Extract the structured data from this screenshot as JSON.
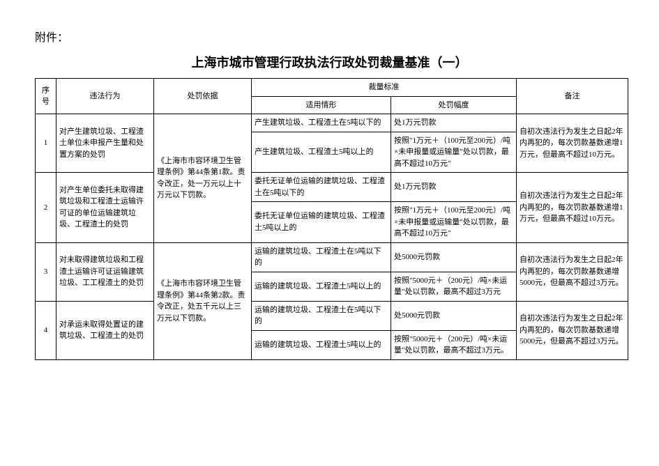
{
  "attachment_label": "附件：",
  "title": "上海市城市管理行政执法行政处罚裁量基准（一）",
  "headers": {
    "index": "序号",
    "violation": "违法行为",
    "basis": "处罚依据",
    "standard": "裁量标准",
    "situation": "适用情形",
    "degree": "处罚幅度",
    "remark": "备注"
  },
  "groups": [
    {
      "basis_text": "《上海市市容环境卫生管理条例》第44条第1款。责令改正，处一万元以上十万元以下罚款。",
      "rows": [
        {
          "index": "1",
          "violation": "对产生建筑垃圾、工程渣土单位未申报产生量和处置方案的处罚",
          "subrows": [
            {
              "situation": "产生建筑垃圾、工程渣土在5吨以下的",
              "degree": "处1万元罚款"
            },
            {
              "situation": "产生建筑垃圾、工程渣土5吨以上的",
              "degree": "按照\"1万元＋（100元至200元）/吨×未申报量或运输量\"处以罚款，最高不超过10万元\""
            }
          ],
          "remark": "自初次违法行为发生之日起2年内再犯的，每次罚款基数递增1万元，但最高不超过10万元。"
        },
        {
          "index": "2",
          "violation": "对产生单位委托未取得建筑垃圾和工程渣土运输许可证的单位运输建筑垃圾、工程渣土的处罚",
          "subrows": [
            {
              "situation": "委托无证单位运输的建筑垃圾、工程渣土在5吨以下的",
              "degree": "处1万元罚款"
            },
            {
              "situation": "委托无证单位运输的建筑垃圾、工程渣土5吨以上的",
              "degree": "按照\"1万元＋（100元至200元）/吨×未申报量或运输量\"处以罚款，最高不超过10万元\""
            }
          ],
          "remark": "自初次违法行为发生之日起2年内再犯的，每次罚款基数递增1万元，但最高不超过10万元。"
        }
      ]
    },
    {
      "basis_text": "《上海市市容环境卫生管理条例》第44条第2款。责令改正，处五千元以上三万元以下罚款。",
      "rows": [
        {
          "index": "3",
          "violation": "对未取得建筑垃圾和工程渣土运输许可证运输建筑垃圾、工工程渣土的处罚",
          "subrows": [
            {
              "situation": "运输的建筑垃圾、工程渣土在5吨以下的",
              "degree": "处5000元罚款"
            },
            {
              "situation": "运输的建筑垃圾、工程渣土5吨以上的",
              "degree": "按照\"5000元＋（200元）/吨×未运量\"处以罚款，最高不超过3万元"
            }
          ],
          "remark": "自初次违法行为发生之日起2年内再犯的，每次罚款基数递增5000元，但最高不超过3万元。"
        },
        {
          "index": "4",
          "violation": "对承运未取得处置证的建筑垃圾、工程渣土的处罚",
          "subrows": [
            {
              "situation": "运输的建筑垃圾、工程渣土在5吨以下的",
              "degree": "处5000元罚款"
            },
            {
              "situation": "运输的建筑垃圾、工程渣土5吨以上的",
              "degree": "按照\"5000元＋（200元）/吨×未运量\"处以罚款，最高不超过3万元。"
            }
          ],
          "remark": "自初次违法行为发生之日起2年内再犯的，每次罚款基数递增5000元，但最高不超过3万元。"
        }
      ]
    }
  ]
}
